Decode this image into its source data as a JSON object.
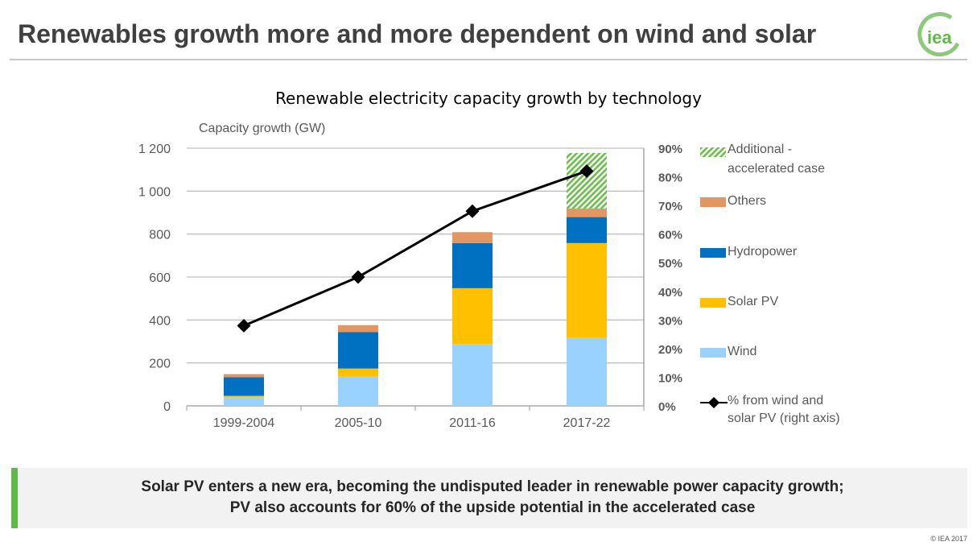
{
  "header": {
    "title": "Renewables growth more and more dependent on wind and solar",
    "logo_text": "iea"
  },
  "chart_data": {
    "type": "bar",
    "title": "Renewable electricity capacity growth by technology",
    "ylabel": "Capacity growth (GW)",
    "ylim": [
      0,
      1200
    ],
    "y_ticks": [
      "0",
      "200",
      "400",
      "600",
      "800",
      "1 000",
      "1 200"
    ],
    "y2lim": [
      0,
      90
    ],
    "y2_ticks": [
      "0%",
      "10%",
      "20%",
      "30%",
      "40%",
      "50%",
      "60%",
      "70%",
      "80%",
      "90%"
    ],
    "grid": true,
    "legend_placement": "right",
    "categories": [
      "1999-2004",
      "2005-10",
      "2011-16",
      "2017-22"
    ],
    "stacked": true,
    "series": [
      {
        "name": "Wind",
        "color": "#99d1ff",
        "values": [
          40,
          136,
          288,
          319
        ]
      },
      {
        "name": "Solar PV",
        "color": "#ffc000",
        "values": [
          7,
          38,
          260,
          439
        ]
      },
      {
        "name": "Hydropower",
        "color": "#0070c0",
        "values": [
          87,
          170,
          210,
          121
        ]
      },
      {
        "name": "Others",
        "color": "#e39661",
        "values": [
          14,
          32,
          51,
          40
        ]
      },
      {
        "name": "Additional - accelerated case",
        "color": "#6abf4b",
        "pattern": "hatched",
        "values": [
          0,
          0,
          0,
          259
        ]
      }
    ],
    "line_series": {
      "name": "% from wind and solar PV (right axis)",
      "color": "#000000",
      "marker": "diamond",
      "axis": "right",
      "values": [
        28,
        45,
        68,
        82
      ]
    }
  },
  "legend": [
    {
      "label": "Additional - accelerated case",
      "key": "additional"
    },
    {
      "label": "Others",
      "key": "others"
    },
    {
      "label": "Hydropower",
      "key": "hydro"
    },
    {
      "label": "Solar PV",
      "key": "solar"
    },
    {
      "label": "Wind",
      "key": "wind"
    },
    {
      "label": "% from wind and solar PV (right axis)",
      "key": "line"
    }
  ],
  "callout": {
    "line1": "Solar PV enters a new era, becoming the undisputed leader in renewable power capacity growth;",
    "line2": "PV also accounts for 60% of the upside potential in the accelerated case"
  },
  "footer": {
    "copyright": "© IEA 2017"
  }
}
